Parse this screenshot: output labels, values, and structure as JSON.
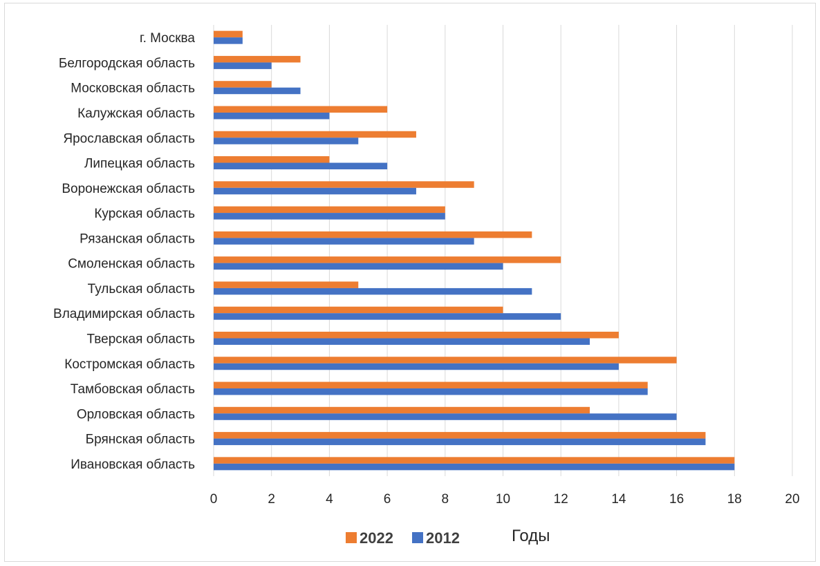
{
  "chart_data": {
    "type": "bar",
    "orientation": "horizontal",
    "categories": [
      "г. Москва",
      "Белгородская область",
      "Московская область",
      "Калужская область",
      "Ярославская область",
      "Липецкая область",
      "Воронежская область",
      "Курская область",
      "Рязанская область",
      "Смоленская область",
      "Тульская область",
      "Владимирская область",
      "Тверская область",
      "Костромская область",
      "Тамбовская область",
      "Орловская область",
      "Брянская область",
      "Ивановская область"
    ],
    "series": [
      {
        "name": "2022",
        "color": "#ED7D31",
        "values": [
          1,
          3,
          2,
          6,
          7,
          4,
          9,
          8,
          11,
          12,
          5,
          10,
          14,
          16,
          15,
          13,
          17,
          18
        ]
      },
      {
        "name": "2012",
        "color": "#4472C4",
        "values": [
          1,
          2,
          3,
          4,
          5,
          6,
          7,
          8,
          9,
          10,
          11,
          12,
          13,
          14,
          15,
          16,
          17,
          18
        ]
      }
    ],
    "xlim": [
      0,
      20
    ],
    "xticks": [
      "0",
      "2",
      "4",
      "6",
      "8",
      "10",
      "12",
      "14",
      "16",
      "18",
      "20"
    ],
    "xlabel": "Годы",
    "grid": true,
    "legend_position": "bottom"
  }
}
